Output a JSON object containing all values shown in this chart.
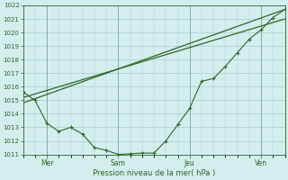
{
  "ylabel": "Pression niveau de la mer( hPa )",
  "bg_color": "#d4eeee",
  "grid_color": "#aacece",
  "line_color": "#2d6629",
  "ylim": [
    1011,
    1022
  ],
  "xlim": [
    0,
    11
  ],
  "yticks": [
    1011,
    1012,
    1013,
    1014,
    1015,
    1016,
    1017,
    1018,
    1019,
    1020,
    1021,
    1022
  ],
  "day_labels": [
    "Mer",
    "Sam",
    "Jeu",
    "Ven"
  ],
  "day_positions": [
    1,
    4,
    7,
    10
  ],
  "line1_x": [
    0,
    0.5,
    1,
    1.5,
    2,
    2.5,
    3,
    3.5,
    4,
    4.5,
    5,
    5.5,
    6,
    6.5,
    7,
    7.5,
    8,
    8.5,
    9,
    9.5,
    10,
    10.5,
    11
  ],
  "line1_y": [
    1015.6,
    1015.0,
    1013.3,
    1012.7,
    1013.0,
    1012.5,
    1011.5,
    1011.3,
    1011.0,
    1011.05,
    1011.1,
    1011.1,
    1012.0,
    1013.2,
    1014.4,
    1016.4,
    1016.6,
    1017.5,
    1018.5,
    1019.5,
    1020.2,
    1021.1,
    1021.7
  ],
  "line2_x": [
    0,
    11
  ],
  "line2_y": [
    1015.2,
    1021.0
  ],
  "line3_x": [
    0,
    11
  ],
  "line3_y": [
    1014.8,
    1021.7
  ],
  "vlines": [
    1,
    4,
    7,
    10
  ]
}
